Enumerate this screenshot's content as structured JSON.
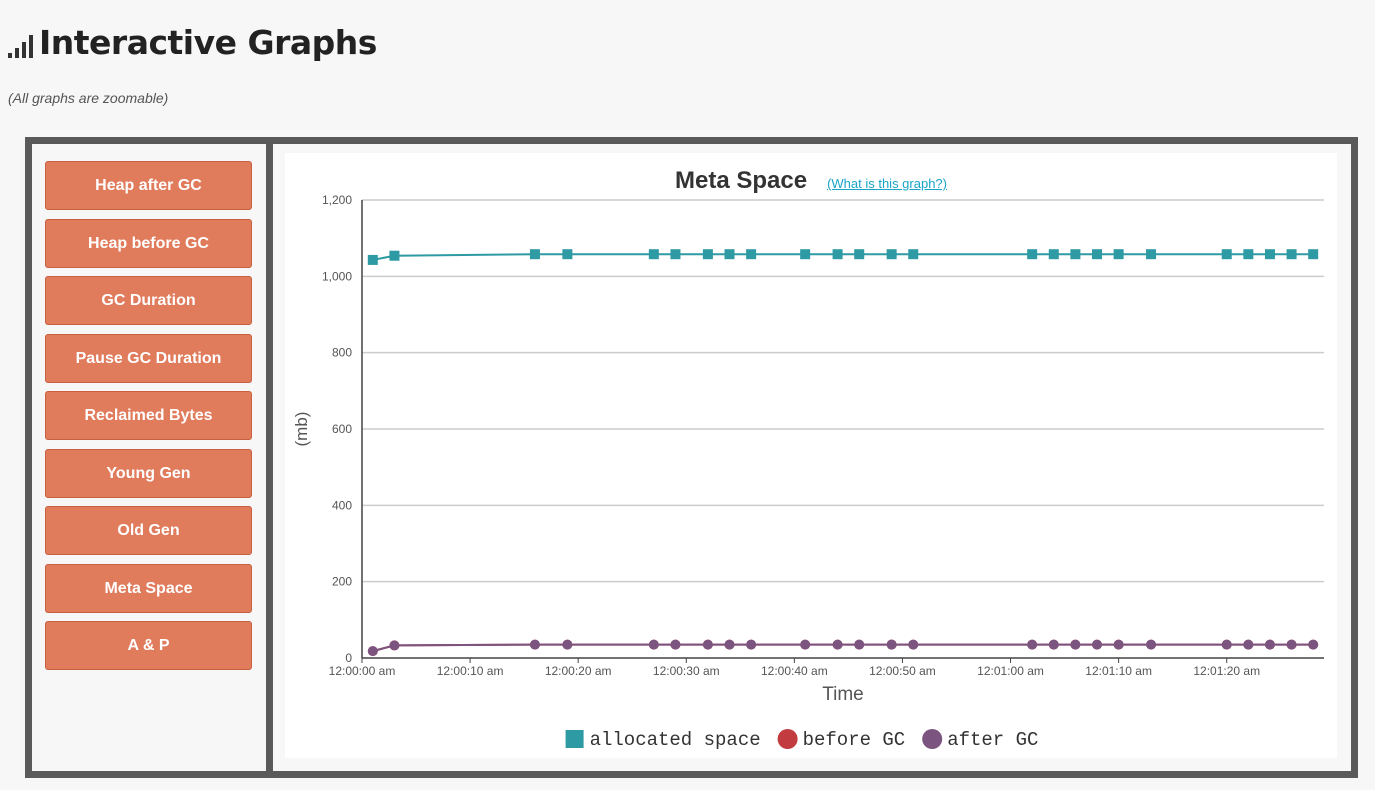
{
  "page": {
    "title": "Interactive Graphs",
    "subtitle": "(All graphs are zoomable)",
    "title_icon": "signal-bars-icon"
  },
  "sidebar": {
    "buttons": [
      "Heap after GC",
      "Heap before GC",
      "GC Duration",
      "Pause GC Duration",
      "Reclaimed Bytes",
      "Young Gen",
      "Old Gen",
      "Meta Space",
      "A & P"
    ]
  },
  "colors": {
    "button_bg": "#e07b5c",
    "frame": "#5a5a5a",
    "link": "#1aa4c8"
  },
  "chart_header": {
    "title": "Meta Space",
    "help_link": "(What is this graph?)"
  },
  "chart_data": {
    "type": "line",
    "title": "Meta Space",
    "xlabel": "Time",
    "ylabel": "(mb)",
    "ylim": [
      0,
      1200
    ],
    "yticks": [
      0,
      200,
      400,
      600,
      800,
      1000,
      1200
    ],
    "ytick_labels": [
      "0",
      "200",
      "400",
      "600",
      "800",
      "1,000",
      "1,200"
    ],
    "xlim": [
      0,
      89
    ],
    "xticks": [
      0,
      10,
      20,
      30,
      40,
      50,
      60,
      70,
      80
    ],
    "xtick_labels": [
      "12:00:00 am",
      "12:00:10 am",
      "12:00:20 am",
      "12:00:30 am",
      "12:00:40 am",
      "12:00:50 am",
      "12:01:00 am",
      "12:01:10 am",
      "12:01:20 am"
    ],
    "x": [
      1,
      3,
      16,
      19,
      27,
      29,
      32,
      34,
      36,
      41,
      44,
      46,
      49,
      51,
      62,
      64,
      66,
      68,
      70,
      73,
      80,
      82,
      84,
      86,
      88
    ],
    "grid": true,
    "legend_position": "bottom",
    "series": [
      {
        "name": "allocated space",
        "color": "#2e9aa3",
        "marker": "square",
        "values": [
          1043,
          1054,
          1058,
          1058,
          1058,
          1058,
          1058,
          1058,
          1058,
          1058,
          1058,
          1058,
          1058,
          1058,
          1058,
          1058,
          1058,
          1058,
          1058,
          1058,
          1058,
          1058,
          1058,
          1058,
          1058
        ]
      },
      {
        "name": "before GC",
        "color": "#c23b3f",
        "marker": "circle",
        "values": [
          18,
          33,
          35,
          35,
          35,
          35,
          35,
          35,
          35,
          35,
          35,
          35,
          35,
          35,
          35,
          35,
          35,
          35,
          35,
          35,
          35,
          35,
          35,
          35,
          35
        ]
      },
      {
        "name": "after GC",
        "color": "#7b5480",
        "marker": "circle",
        "values": [
          18,
          33,
          35,
          35,
          35,
          35,
          35,
          35,
          35,
          35,
          35,
          35,
          35,
          35,
          35,
          35,
          35,
          35,
          35,
          35,
          35,
          35,
          35,
          35,
          35
        ]
      }
    ]
  }
}
